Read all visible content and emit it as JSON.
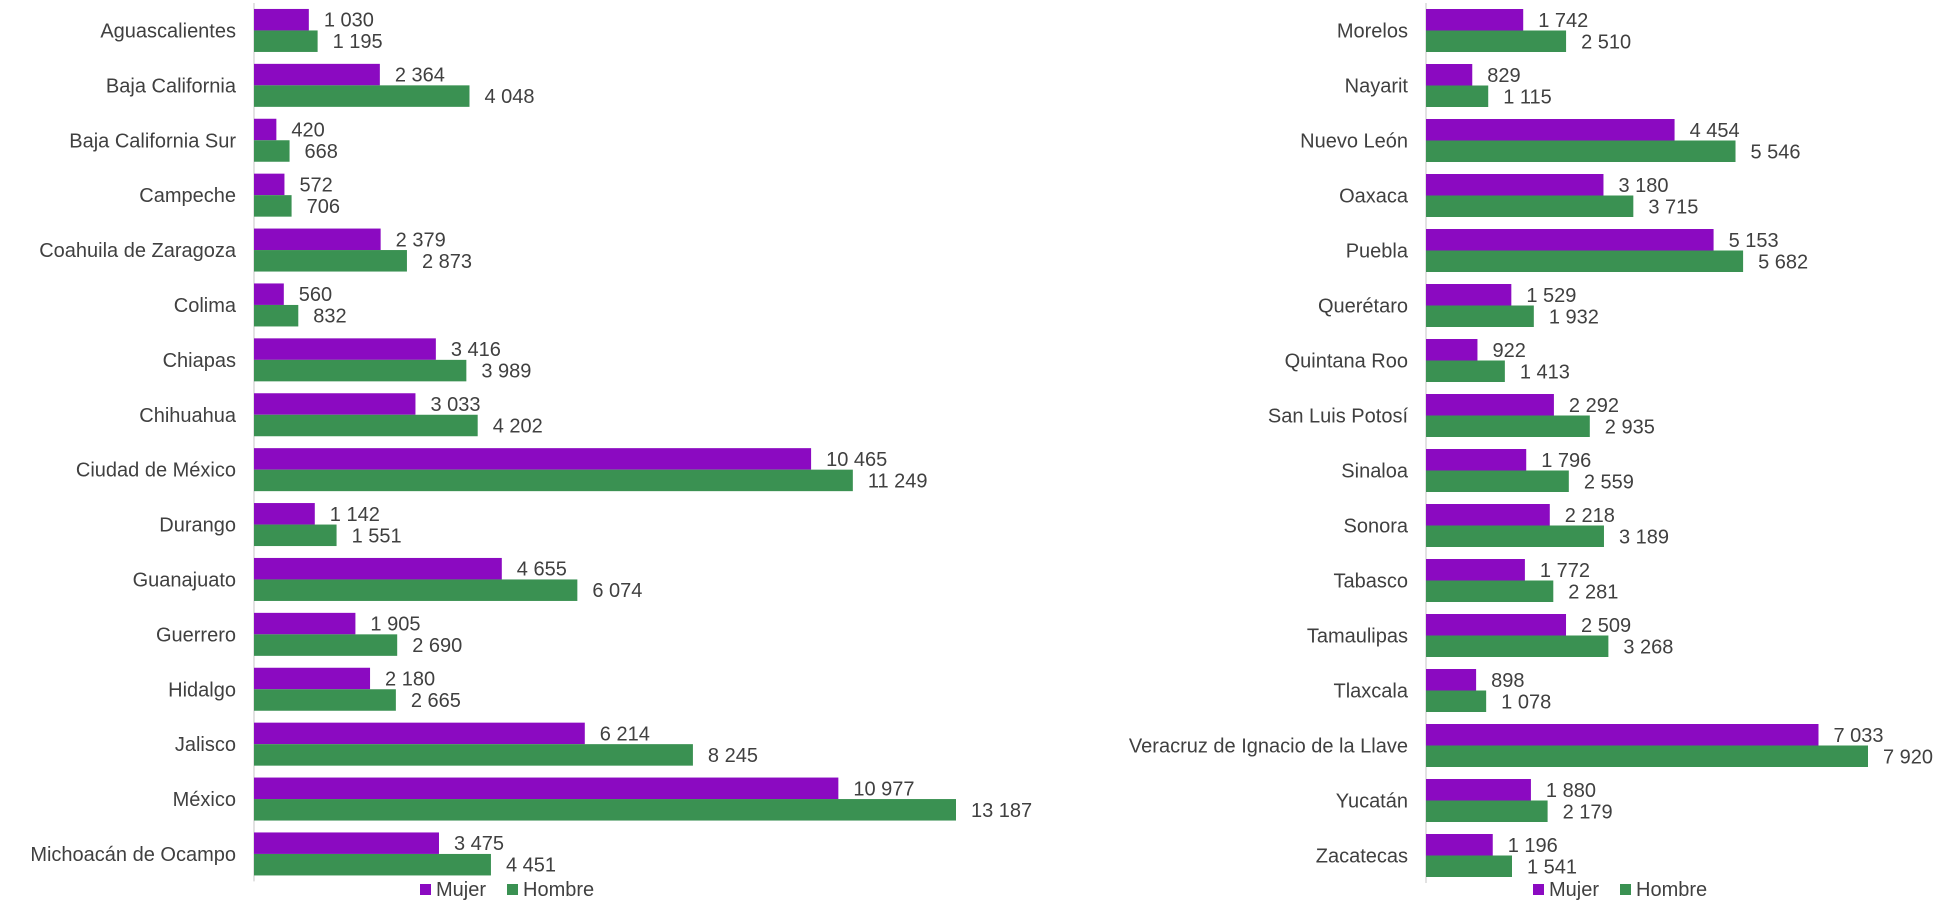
{
  "colors": {
    "mujer": "#8B0AC1",
    "hombre": "#3A9152"
  },
  "chart_data": [
    {
      "type": "bar",
      "orientation": "horizontal",
      "categories": [
        "Aguascalientes",
        "Baja California",
        "Baja California Sur",
        "Campeche",
        "Coahuila de Zaragoza",
        "Colima",
        "Chiapas",
        "Chihuahua",
        "Ciudad de México",
        "Durango",
        "Guanajuato",
        "Guerrero",
        "Hidalgo",
        "Jalisco",
        "México",
        "Michoacán de Ocampo"
      ],
      "series": [
        {
          "name": "Mujer",
          "values": [
            1030,
            2364,
            420,
            572,
            2379,
            560,
            3416,
            3033,
            10465,
            1142,
            4655,
            1905,
            2180,
            6214,
            10977,
            3475
          ],
          "labels": [
            "1 030",
            "2 364",
            "420",
            "572",
            "2 379",
            "560",
            "3 416",
            "3 033",
            "10 465",
            "1 142",
            "4 655",
            "1 905",
            "2 180",
            "6 214",
            "10 977",
            "3 475"
          ]
        },
        {
          "name": "Hombre",
          "values": [
            1195,
            4048,
            668,
            706,
            2873,
            832,
            3989,
            4202,
            11249,
            1551,
            6074,
            2690,
            2665,
            8245,
            13187,
            4451
          ],
          "labels": [
            "1 195",
            "4 048",
            "668",
            "706",
            "2 873",
            "832",
            "3 989",
            "4 202",
            "11 249",
            "1 551",
            "6 074",
            "2 690",
            "2 665",
            "8 245",
            "13 187",
            "4 451"
          ]
        }
      ],
      "legend": "bottom",
      "grid": false
    },
    {
      "type": "bar",
      "orientation": "horizontal",
      "categories": [
        "Morelos",
        "Nayarit",
        "Nuevo León",
        "Oaxaca",
        "Puebla",
        "Querétaro",
        "Quintana Roo",
        "San Luis Potosí",
        "Sinaloa",
        "Sonora",
        "Tabasco",
        "Tamaulipas",
        "Tlaxcala",
        "Veracruz de Ignacio de la Llave",
        "Yucatán",
        "Zacatecas"
      ],
      "series": [
        {
          "name": "Mujer",
          "values": [
            1742,
            829,
            4454,
            3180,
            5153,
            1529,
            922,
            2292,
            1796,
            2218,
            1772,
            2509,
            898,
            7033,
            1880,
            1196
          ],
          "labels": [
            "1 742",
            "829",
            "4 454",
            "3 180",
            "5 153",
            "1 529",
            "922",
            "2 292",
            "1 796",
            "2 218",
            "1 772",
            "2 509",
            "898",
            "7 033",
            "1 880",
            "1 196"
          ]
        },
        {
          "name": "Hombre",
          "values": [
            2510,
            1115,
            5546,
            3715,
            5682,
            1932,
            1413,
            2935,
            2559,
            3189,
            2281,
            3268,
            1078,
            7920,
            2179,
            1541
          ],
          "labels": [
            "2 510",
            "1 115",
            "5 546",
            "3 715",
            "5 682",
            "1 932",
            "1 413",
            "2 935",
            "2 559",
            "3 189",
            "2 281",
            "3 268",
            "1 078",
            "7 920",
            "2 179",
            "1 541"
          ]
        }
      ],
      "legend": "bottom",
      "grid": false
    }
  ]
}
